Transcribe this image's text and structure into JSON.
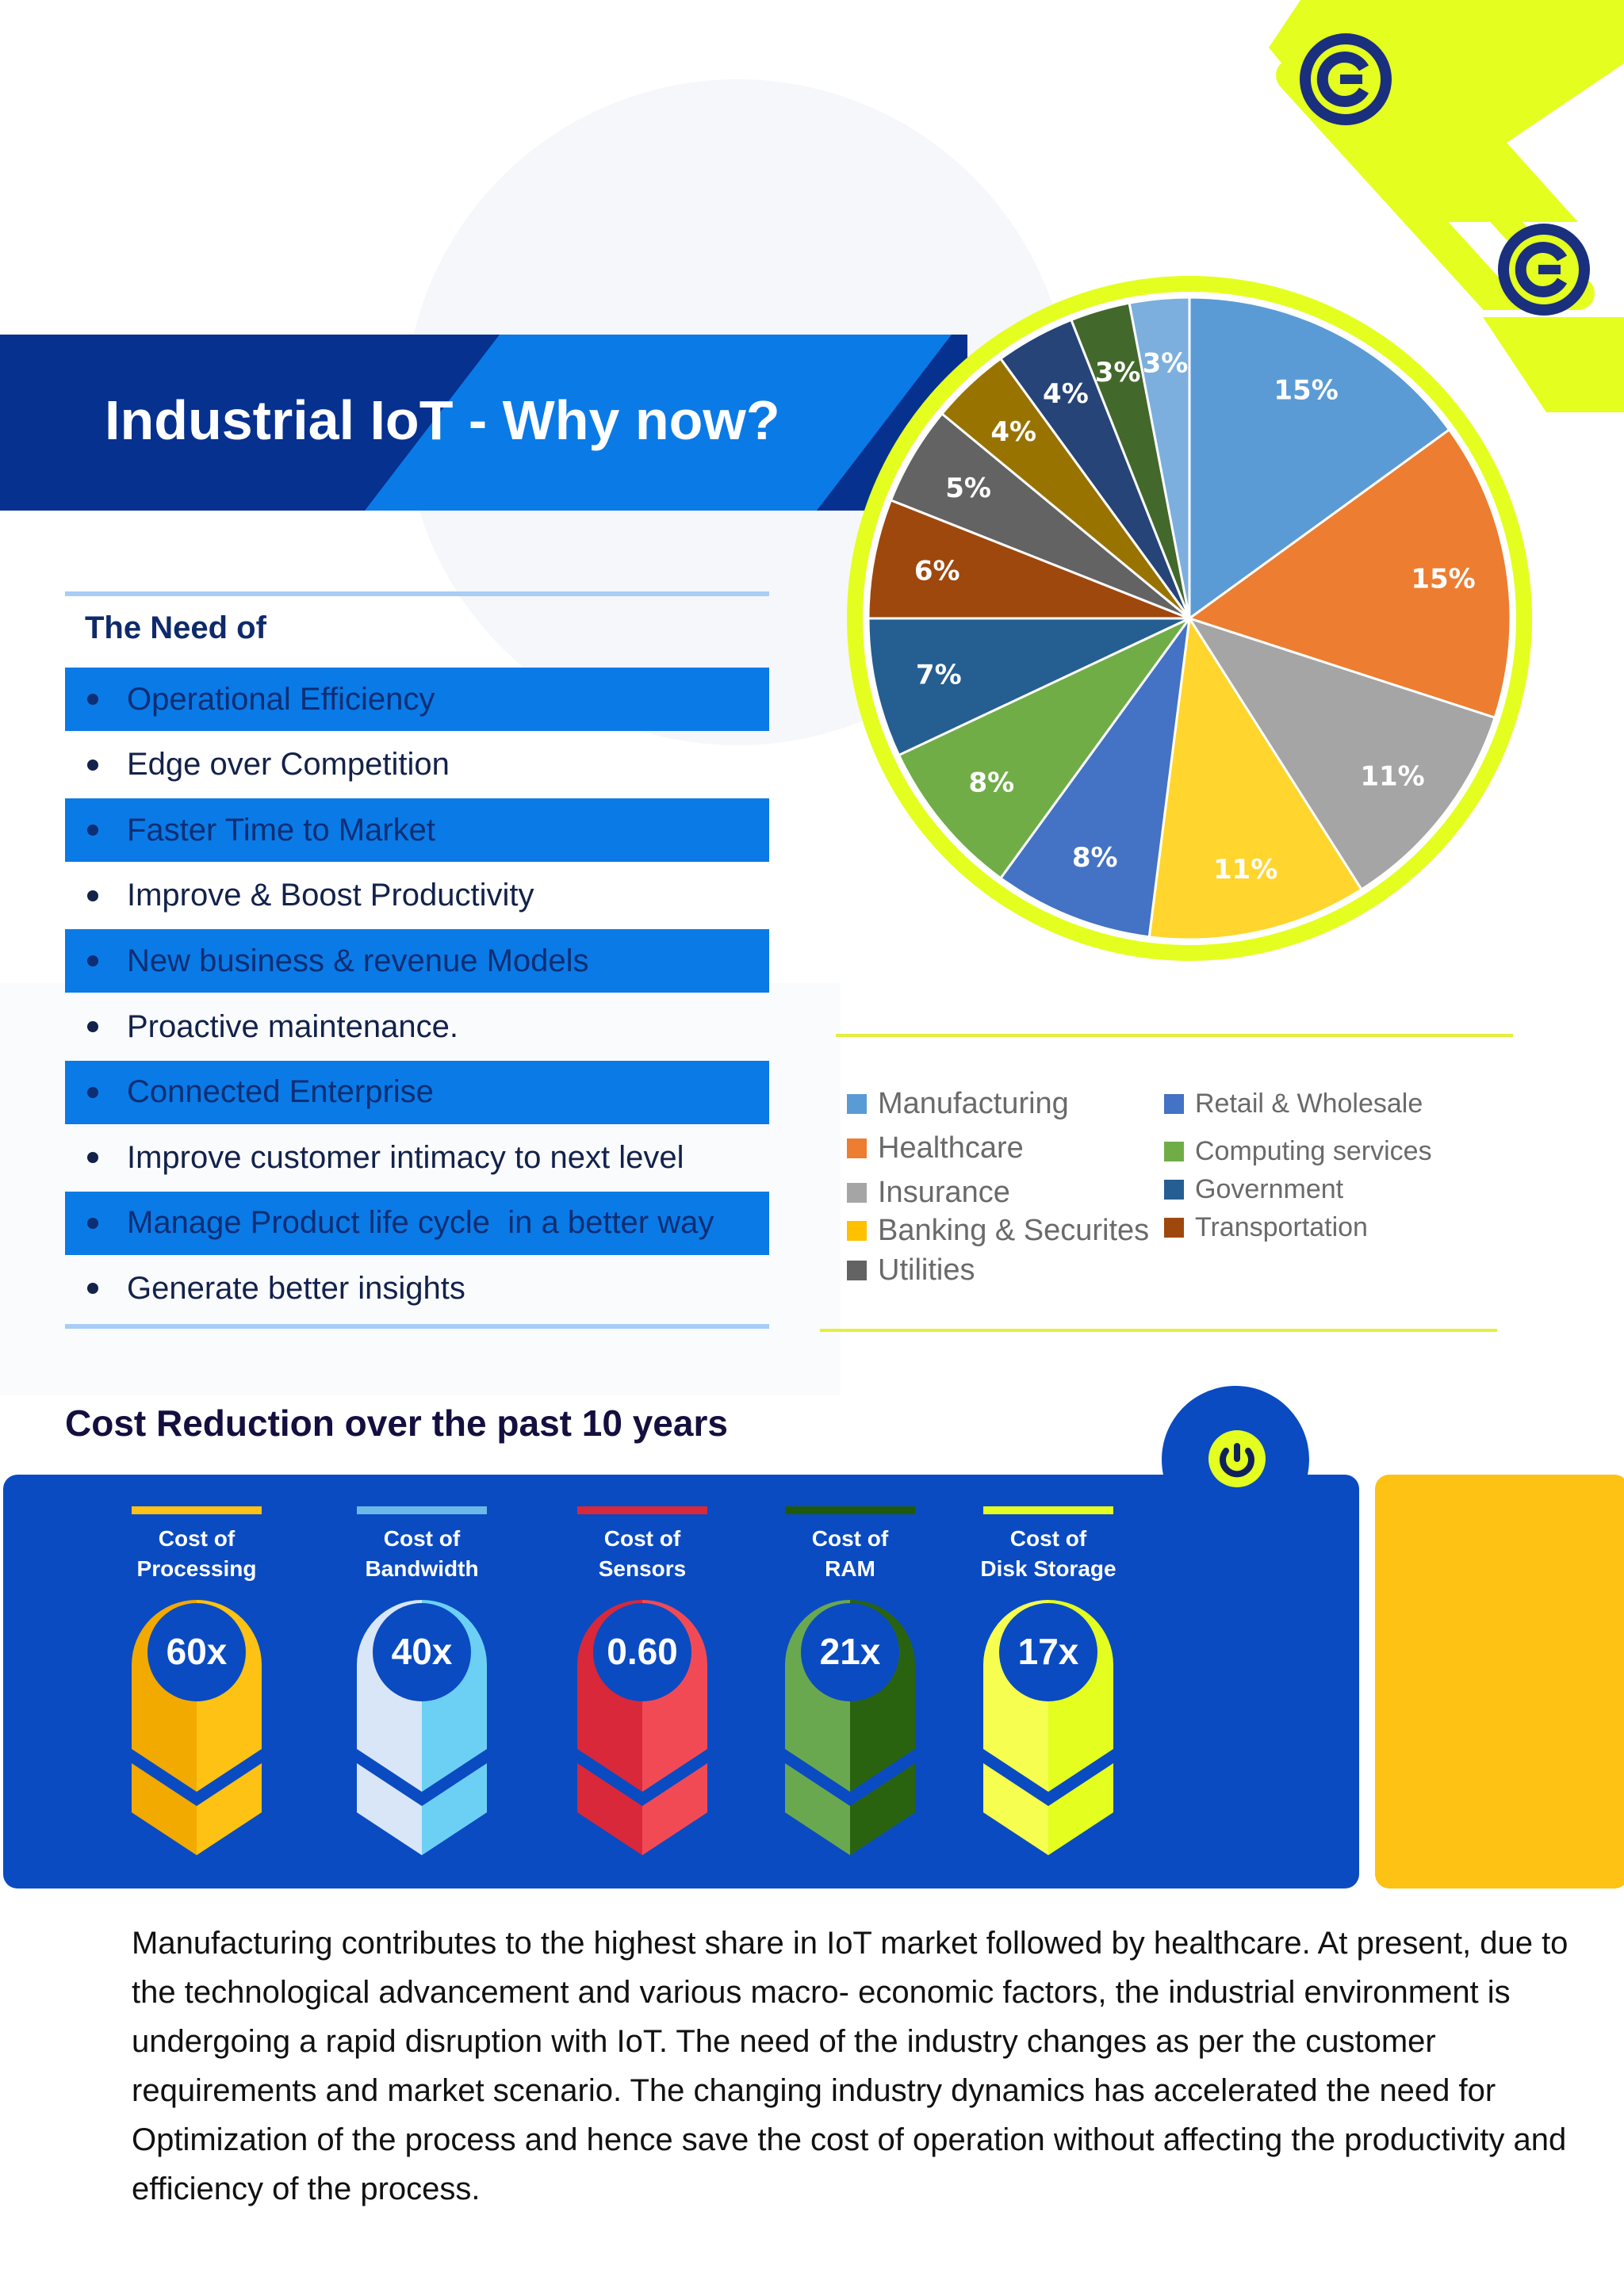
{
  "page": {
    "title": "Industrial IoT - Why now?",
    "brand_colors": {
      "dark_blue": "#06318f",
      "blue": "#0a7ae6",
      "lime": "#e4ff1f",
      "yellow": "#fdc213"
    },
    "icons": [
      "logo-c-icon",
      "power-icon"
    ]
  },
  "needs": {
    "heading": "The Need of",
    "items": [
      {
        "label": "Operational Efficiency",
        "highlighted": true
      },
      {
        "label": "Edge over Competition",
        "highlighted": false
      },
      {
        "label": "Faster Time to Market",
        "highlighted": true
      },
      {
        "label": "Improve & Boost Productivity",
        "highlighted": false
      },
      {
        "label": "New business & revenue Models",
        "highlighted": true
      },
      {
        "label": "Proactive maintenance.",
        "highlighted": false
      },
      {
        "label": "Connected Enterprise",
        "highlighted": true
      },
      {
        "label": "Improve customer intimacy to next level",
        "highlighted": false
      },
      {
        "label": "Manage Product life cycle  in a better way",
        "highlighted": true
      },
      {
        "label": "Generate better insights",
        "highlighted": false
      }
    ]
  },
  "chart_data": [
    {
      "type": "pie",
      "title": "",
      "legend_placement": "bottom",
      "labels": [
        "15%",
        "15%",
        "11%",
        "11%",
        "8%",
        "8%",
        "7%",
        "6%",
        "5%",
        "4%",
        "4%",
        "3%",
        "3%"
      ],
      "values": [
        15,
        15,
        11,
        11,
        8,
        8,
        7,
        6,
        5,
        4,
        4,
        3,
        3
      ],
      "colors": [
        "#5b9bd5",
        "#ed7d31",
        "#a5a5a5",
        "#ffd52e",
        "#4472c4",
        "#70ad47",
        "#255e91",
        "#9e480e",
        "#636363",
        "#997300",
        "#264478",
        "#43682b",
        "#7cafdd"
      ],
      "legend": [
        {
          "name": "Manufacturing",
          "color": "#5b9bd5"
        },
        {
          "name": "Healthcare",
          "color": "#ed7d31"
        },
        {
          "name": "Insurance",
          "color": "#a5a5a5"
        },
        {
          "name": "Banking & Securites",
          "color": "#ffc000"
        },
        {
          "name": "Utilities",
          "color": "#636363"
        },
        {
          "name": "Retail & Wholesale",
          "color": "#4472c4"
        },
        {
          "name": "Computing services",
          "color": "#70ad47"
        },
        {
          "name": "Government",
          "color": "#255e91"
        },
        {
          "name": "Transportation",
          "color": "#9e480e"
        }
      ]
    },
    {
      "type": "table",
      "title": "Cost Reduction over the past 10 years",
      "items": [
        {
          "label_line1": "Cost of",
          "label_line2": "Processing",
          "value": "60x",
          "color_left": "#f2a900",
          "color_right": "#fdc213"
        },
        {
          "label_line1": "Cost of",
          "label_line2": "Bandwidth",
          "value": "40x",
          "color_left": "#d8e6f7",
          "color_right": "#6cd0f5"
        },
        {
          "label_line1": "Cost of",
          "label_line2": "Sensors",
          "value": "0.60",
          "color_left": "#d8283a",
          "color_right": "#f24a55"
        },
        {
          "label_line1": "Cost of",
          "label_line2": "RAM",
          "value": "21x",
          "color_left": "#6aa84f",
          "color_right": "#2a6310"
        },
        {
          "label_line1": "Cost of",
          "label_line2": "Disk Storage",
          "value": "17x",
          "color_left": "#f6ff4f",
          "color_right": "#e4ff1f"
        }
      ]
    }
  ],
  "body_text": "Manufacturing contributes to the highest share in IoT market followed by healthcare. At present, due to the technological advancement and various macro- economic factors, the industrial environment is undergoing a rapid disruption with IoT. The need of the industry changes as per the customer requirements and market scenario. The changing industry dynamics has accelerated the need for Optimization of the process and hence save the cost of operation without affecting the productivity and efficiency of the process."
}
